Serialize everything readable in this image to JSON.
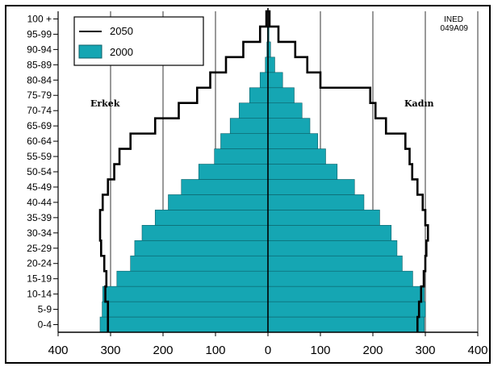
{
  "chart_data": {
    "type": "bar",
    "orientation": "horizontal-population-pyramid",
    "corner_note": [
      "INED",
      "049A09"
    ],
    "side_labels": {
      "left": "Erkek",
      "right": "Kadın"
    },
    "categories": [
      "0-4",
      "5-9",
      "10-14",
      "15-19",
      "20-24",
      "25-29",
      "30-34",
      "35-39",
      "40-44",
      "45-49",
      "50-54",
      "55-59",
      "60-64",
      "65-69",
      "70-74",
      "75-79",
      "80-84",
      "85-89",
      "90-94",
      "95-99",
      "100 +"
    ],
    "x_ticks": [
      "400",
      "300",
      "200",
      "100",
      "0",
      "100",
      "200",
      "300",
      "400"
    ],
    "xlim": [
      -400,
      400
    ],
    "legend": {
      "placement": "top-left",
      "entries": [
        {
          "label": "2050",
          "kind": "line"
        },
        {
          "label": "2000",
          "kind": "fill"
        }
      ]
    },
    "series": [
      {
        "name": "2000",
        "kind": "bars",
        "male": [
          320,
          316,
          315,
          288,
          262,
          254,
          240,
          215,
          190,
          165,
          132,
          102,
          90,
          72,
          55,
          35,
          15,
          5,
          2,
          1,
          0
        ],
        "female": [
          298,
          300,
          298,
          276,
          256,
          246,
          235,
          213,
          183,
          165,
          132,
          110,
          95,
          80,
          65,
          50,
          28,
          13,
          5,
          2,
          0
        ]
      },
      {
        "name": "2050",
        "kind": "outline",
        "male": [
          305,
          305,
          310,
          308,
          312,
          318,
          320,
          320,
          315,
          305,
          293,
          283,
          262,
          215,
          170,
          135,
          110,
          80,
          47,
          15,
          3
        ],
        "female": [
          285,
          288,
          292,
          297,
          300,
          302,
          305,
          300,
          295,
          285,
          275,
          270,
          262,
          225,
          205,
          195,
          100,
          75,
          52,
          20,
          3
        ]
      }
    ],
    "colors": {
      "bar_fill": "#15a6b3",
      "bar_stroke": "#0c5f67",
      "outline": "#000000",
      "grid": "#000000"
    },
    "grid": true
  }
}
